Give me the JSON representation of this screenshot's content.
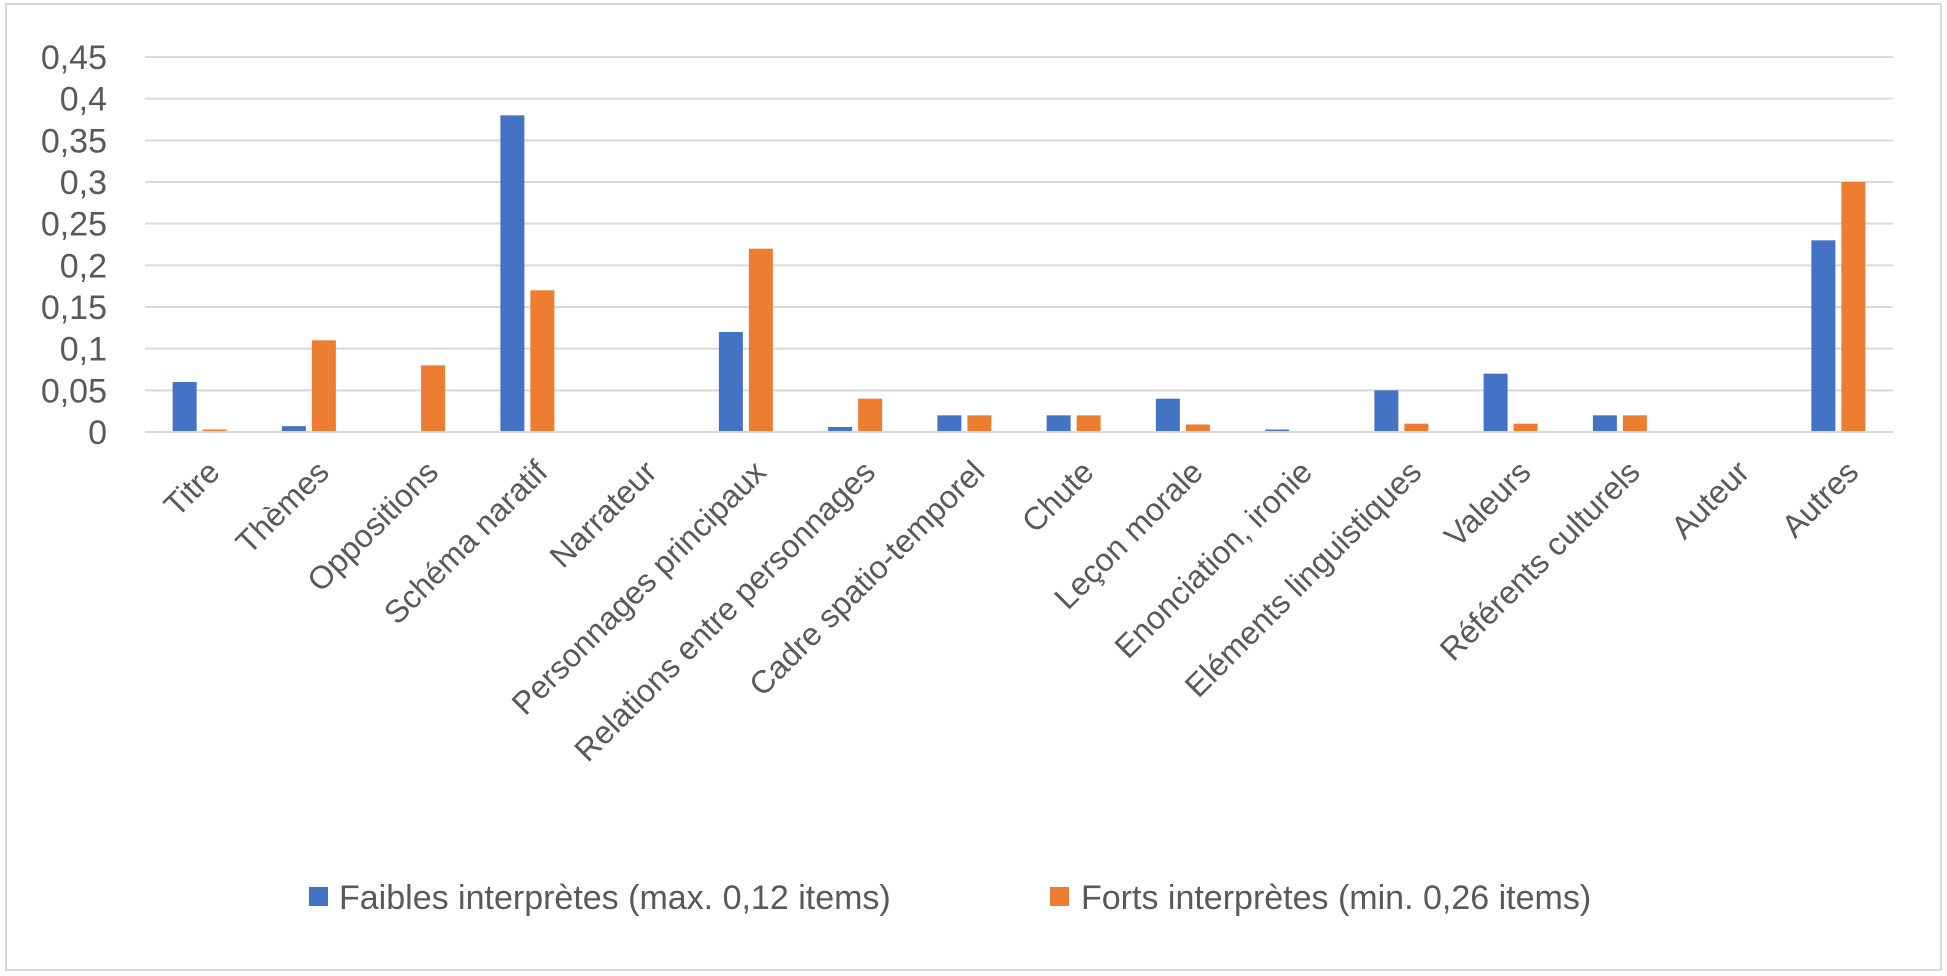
{
  "chart_data": {
    "type": "bar",
    "title": "",
    "xlabel": "",
    "ylabel": "",
    "ylim": [
      0,
      0.45
    ],
    "yticks": [
      0,
      0.05,
      0.1,
      0.15,
      0.2,
      0.25,
      0.3,
      0.35,
      0.4,
      0.45
    ],
    "ytick_labels": [
      "0",
      "0,05",
      "0,1",
      "0,15",
      "0,2",
      "0,25",
      "0,3",
      "0,35",
      "0,4",
      "0,45"
    ],
    "grid": true,
    "legend_position": "bottom",
    "categories": [
      "Titre",
      "Thèmes",
      "Oppositions",
      "Schéma naratif",
      "Narrateur",
      "Personnages principaux",
      "Relations entre personnages",
      "Cadre spatio-temporel",
      "Chute",
      "Leçon morale",
      "Enonciation, ironie",
      "Eléments linguistiques",
      "Valeurs",
      "Référents culturels",
      "Auteur",
      "Autres"
    ],
    "series": [
      {
        "name": "Faibles interprètes (max. 0,12 items)",
        "color": "#4472C4",
        "values": [
          0.06,
          0.007,
          0,
          0.38,
          0,
          0.12,
          0.006,
          0.02,
          0.02,
          0.04,
          0.003,
          0.05,
          0.07,
          0.02,
          0,
          0.23
        ]
      },
      {
        "name": "Forts interprètes (min. 0,26 items)",
        "color": "#ED7D31",
        "values": [
          0.003,
          0.11,
          0.08,
          0.17,
          0,
          0.22,
          0.04,
          0.02,
          0.02,
          0.009,
          0,
          0.01,
          0.01,
          0.02,
          0,
          0.3
        ]
      }
    ]
  }
}
